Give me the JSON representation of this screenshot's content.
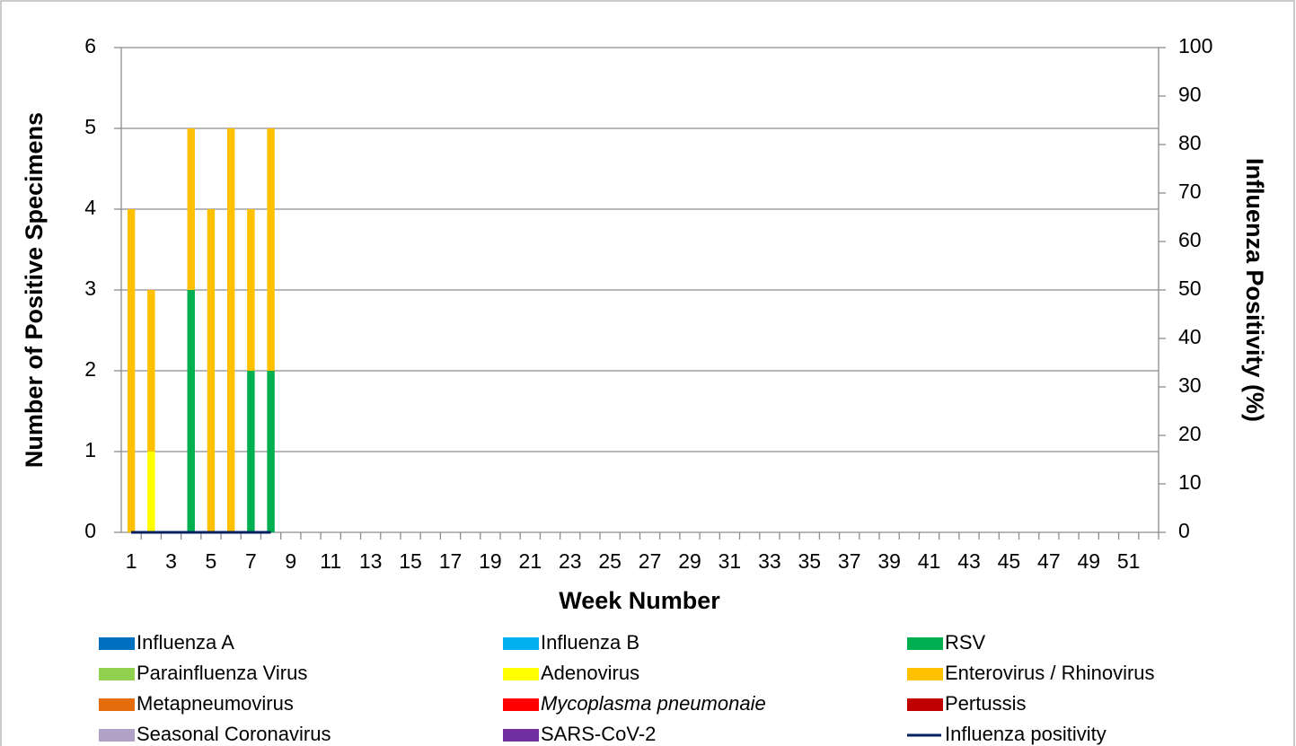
{
  "chart_data": {
    "type": "bar",
    "stacked": true,
    "x_title": "Week Number",
    "y_title": "Number of Positive Specimens",
    "y2_title": "Influenza Positivity (%)",
    "categories": [
      1,
      null,
      3,
      null,
      5,
      null,
      7,
      null,
      9,
      null,
      11,
      null,
      13,
      null,
      15,
      null,
      17,
      null,
      19,
      null,
      21,
      null,
      23,
      null,
      25,
      null,
      27,
      null,
      29,
      null,
      31,
      null,
      33,
      null,
      35,
      null,
      37,
      null,
      39,
      null,
      41,
      null,
      43,
      null,
      45,
      null,
      47,
      null,
      49,
      null,
      51,
      null
    ],
    "ylim": [
      0,
      6
    ],
    "yticks": [
      0,
      1,
      2,
      3,
      4,
      5,
      6
    ],
    "y2lim": [
      0,
      100
    ],
    "y2ticks": [
      0,
      10,
      20,
      30,
      40,
      50,
      60,
      70,
      80,
      90,
      100
    ],
    "grid": true,
    "legend": "bottom",
    "series": [
      {
        "name": "Influenza A",
        "color": "#0070c0",
        "values": [
          0,
          0,
          0,
          0,
          0,
          0,
          0,
          0,
          null,
          null,
          null,
          null,
          null,
          null,
          null,
          null,
          null,
          null,
          null,
          null,
          null,
          null,
          null,
          null,
          null,
          null,
          null,
          null,
          null,
          null,
          null,
          null,
          null,
          null,
          null,
          null,
          null,
          null,
          null,
          null,
          null,
          null,
          null,
          null,
          null,
          null,
          null,
          null,
          null,
          null,
          null,
          null
        ]
      },
      {
        "name": "Influenza B",
        "color": "#00b0f0",
        "values": [
          0,
          0,
          0,
          0,
          0,
          0,
          0,
          0,
          null,
          null,
          null,
          null,
          null,
          null,
          null,
          null,
          null,
          null,
          null,
          null,
          null,
          null,
          null,
          null,
          null,
          null,
          null,
          null,
          null,
          null,
          null,
          null,
          null,
          null,
          null,
          null,
          null,
          null,
          null,
          null,
          null,
          null,
          null,
          null,
          null,
          null,
          null,
          null,
          null,
          null,
          null,
          null
        ]
      },
      {
        "name": "RSV",
        "color": "#00b050",
        "values": [
          0,
          0,
          0,
          3,
          0,
          0,
          2,
          2,
          null,
          null,
          null,
          null,
          null,
          null,
          null,
          null,
          null,
          null,
          null,
          null,
          null,
          null,
          null,
          null,
          null,
          null,
          null,
          null,
          null,
          null,
          null,
          null,
          null,
          null,
          null,
          null,
          null,
          null,
          null,
          null,
          null,
          null,
          null,
          null,
          null,
          null,
          null,
          null,
          null,
          null,
          null,
          null
        ]
      },
      {
        "name": "Parainfluenza Virus",
        "color": "#92d050",
        "values": [
          0,
          0,
          0,
          0,
          0,
          0,
          0,
          0,
          null,
          null,
          null,
          null,
          null,
          null,
          null,
          null,
          null,
          null,
          null,
          null,
          null,
          null,
          null,
          null,
          null,
          null,
          null,
          null,
          null,
          null,
          null,
          null,
          null,
          null,
          null,
          null,
          null,
          null,
          null,
          null,
          null,
          null,
          null,
          null,
          null,
          null,
          null,
          null,
          null,
          null,
          null,
          null
        ]
      },
      {
        "name": "Adenovirus",
        "color": "#ffff00",
        "values": [
          0,
          1,
          0,
          0,
          0,
          0,
          0,
          0,
          null,
          null,
          null,
          null,
          null,
          null,
          null,
          null,
          null,
          null,
          null,
          null,
          null,
          null,
          null,
          null,
          null,
          null,
          null,
          null,
          null,
          null,
          null,
          null,
          null,
          null,
          null,
          null,
          null,
          null,
          null,
          null,
          null,
          null,
          null,
          null,
          null,
          null,
          null,
          null,
          null,
          null,
          null,
          null
        ]
      },
      {
        "name": "Enterovirus / Rhinovirus",
        "color": "#ffc000",
        "values": [
          4,
          2,
          0,
          2,
          4,
          5,
          2,
          3,
          null,
          null,
          null,
          null,
          null,
          null,
          null,
          null,
          null,
          null,
          null,
          null,
          null,
          null,
          null,
          null,
          null,
          null,
          null,
          null,
          null,
          null,
          null,
          null,
          null,
          null,
          null,
          null,
          null,
          null,
          null,
          null,
          null,
          null,
          null,
          null,
          null,
          null,
          null,
          null,
          null,
          null,
          null,
          null
        ]
      },
      {
        "name": "Metapneumovirus",
        "color": "#e46c0a",
        "values": [
          0,
          0,
          0,
          0,
          0,
          0,
          0,
          0,
          null,
          null,
          null,
          null,
          null,
          null,
          null,
          null,
          null,
          null,
          null,
          null,
          null,
          null,
          null,
          null,
          null,
          null,
          null,
          null,
          null,
          null,
          null,
          null,
          null,
          null,
          null,
          null,
          null,
          null,
          null,
          null,
          null,
          null,
          null,
          null,
          null,
          null,
          null,
          null,
          null,
          null,
          null,
          null
        ]
      },
      {
        "name": "Mycoplasma pneumonaie",
        "style": "italic",
        "color": "#ff0000",
        "values": [
          0,
          0,
          0,
          0,
          0,
          0,
          0,
          0,
          null,
          null,
          null,
          null,
          null,
          null,
          null,
          null,
          null,
          null,
          null,
          null,
          null,
          null,
          null,
          null,
          null,
          null,
          null,
          null,
          null,
          null,
          null,
          null,
          null,
          null,
          null,
          null,
          null,
          null,
          null,
          null,
          null,
          null,
          null,
          null,
          null,
          null,
          null,
          null,
          null,
          null,
          null,
          null
        ]
      },
      {
        "name": "Pertussis",
        "color": "#c00000",
        "values": [
          0,
          0,
          0,
          0,
          0,
          0,
          0,
          0,
          null,
          null,
          null,
          null,
          null,
          null,
          null,
          null,
          null,
          null,
          null,
          null,
          null,
          null,
          null,
          null,
          null,
          null,
          null,
          null,
          null,
          null,
          null,
          null,
          null,
          null,
          null,
          null,
          null,
          null,
          null,
          null,
          null,
          null,
          null,
          null,
          null,
          null,
          null,
          null,
          null,
          null,
          null,
          null
        ]
      },
      {
        "name": "Seasonal Coronavirus",
        "color": "#b3a2c7",
        "values": [
          0,
          0,
          0,
          0,
          0,
          0,
          0,
          0,
          null,
          null,
          null,
          null,
          null,
          null,
          null,
          null,
          null,
          null,
          null,
          null,
          null,
          null,
          null,
          null,
          null,
          null,
          null,
          null,
          null,
          null,
          null,
          null,
          null,
          null,
          null,
          null,
          null,
          null,
          null,
          null,
          null,
          null,
          null,
          null,
          null,
          null,
          null,
          null,
          null,
          null,
          null,
          null
        ]
      },
      {
        "name": "SARS-CoV-2",
        "color": "#7030a0",
        "values": [
          0,
          0,
          0,
          0,
          0,
          0,
          0,
          0,
          null,
          null,
          null,
          null,
          null,
          null,
          null,
          null,
          null,
          null,
          null,
          null,
          null,
          null,
          null,
          null,
          null,
          null,
          null,
          null,
          null,
          null,
          null,
          null,
          null,
          null,
          null,
          null,
          null,
          null,
          null,
          null,
          null,
          null,
          null,
          null,
          null,
          null,
          null,
          null,
          null,
          null,
          null,
          null
        ]
      },
      {
        "name": "Influenza positivity",
        "type": "line",
        "axis": "y2",
        "color": "#002060",
        "values": [
          0,
          0,
          0,
          0,
          0,
          0,
          0,
          0,
          null,
          null,
          null,
          null,
          null,
          null,
          null,
          null,
          null,
          null,
          null,
          null,
          null,
          null,
          null,
          null,
          null,
          null,
          null,
          null,
          null,
          null,
          null,
          null,
          null,
          null,
          null,
          null,
          null,
          null,
          null,
          null,
          null,
          null,
          null,
          null,
          null,
          null,
          null,
          null,
          null,
          null,
          null,
          null
        ]
      }
    ]
  }
}
